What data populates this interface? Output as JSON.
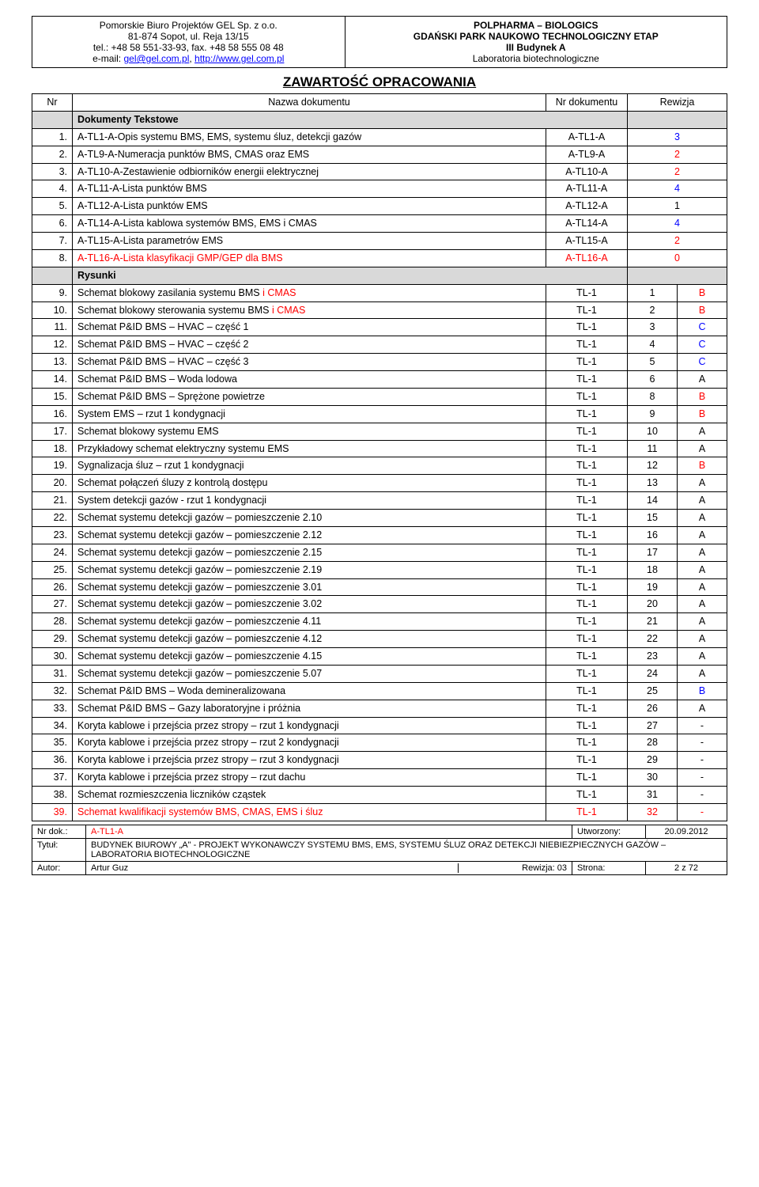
{
  "header": {
    "left": {
      "company": "Pomorskie Biuro Projektów GEL Sp. z o.o.",
      "addr": "81-874 Sopot, ul. Reja 13/15",
      "tel": "tel.: +48 58 551-33-93, fax. +48 58 555 08 48",
      "email_prefix": "e-mail: ",
      "email1": "gel@gel.com.pl",
      "email_sep": ", ",
      "email2": "http://www.gel.com.pl"
    },
    "right": {
      "l1": "POLPHARMA – BIOLOGICS",
      "l2": "GDAŃSKI PARK NAUKOWO TECHNOLOGICZNY ETAP",
      "l3": "III Budynek A",
      "l4": "Laboratoria biotechnologiczne"
    }
  },
  "title": "ZAWARTOŚĆ OPRACOWANIA",
  "columns": {
    "nr": "Nr",
    "name": "Nazwa dokumentu",
    "doc": "Nr dokumentu",
    "rev": "Rewizja"
  },
  "sections": {
    "text": "Dokumenty Tekstowe",
    "draw": "Rysunki"
  },
  "rows_text": [
    {
      "n": "1.",
      "name": "A-TL1-A-Opis systemu BMS, EMS, systemu śluz, detekcji gazów",
      "doc": "A-TL1-A",
      "c1": "3",
      "cls1": "blue"
    },
    {
      "n": "2.",
      "name": "A-TL9-A-Numeracja punktów BMS, CMAS oraz EMS",
      "doc": "A-TL9-A",
      "c1": "2",
      "cls1": "red"
    },
    {
      "n": "3.",
      "name": "A-TL10-A-Zestawienie odbiorników energii elektrycznej",
      "doc": "A-TL10-A",
      "c1": "2",
      "cls1": "red"
    },
    {
      "n": "4.",
      "name": "A-TL11-A-Lista punktów BMS",
      "doc": "A-TL11-A",
      "c1": "4",
      "cls1": "blue"
    },
    {
      "n": "5.",
      "name": "A-TL12-A-Lista punktów EMS",
      "doc": "A-TL12-A",
      "c1": "1",
      "cls1": ""
    },
    {
      "n": "6.",
      "name": "A-TL14-A-Lista kablowa systemów BMS, EMS i CMAS",
      "doc": "A-TL14-A",
      "c1": "4",
      "cls1": "blue"
    },
    {
      "n": "7.",
      "name": "A-TL15-A-Lista parametrów EMS",
      "doc": "A-TL15-A",
      "c1": "2",
      "cls1": "red"
    },
    {
      "n": "8.",
      "name": "A-TL16-A-Lista klasyfikacji GMP/GEP dla BMS",
      "name_cls": "red",
      "doc": "A-TL16-A",
      "doc_cls": "red",
      "c1": "0",
      "cls1": "red"
    }
  ],
  "rows_draw": [
    {
      "n": "9.",
      "name": "Schemat blokowy zasilania systemu BMS i CMAS",
      "name_html": "Schemat blokowy zasilania systemu BMS <span class='red'>i CMAS</span>",
      "doc": "TL-1",
      "c1": "1",
      "c2": "B",
      "cls2": "red"
    },
    {
      "n": "10.",
      "name": "Schemat blokowy sterowania systemu BMS i CMAS",
      "name_html": "Schemat blokowy sterowania systemu BMS <span class='red'>i CMAS</span>",
      "doc": "TL-1",
      "c1": "2",
      "c2": "B",
      "cls2": "red"
    },
    {
      "n": "11.",
      "name": "Schemat P&ID BMS – HVAC – część 1",
      "doc": "TL-1",
      "c1": "3",
      "c2": "C",
      "cls2": "blue"
    },
    {
      "n": "12.",
      "name": "Schemat P&ID BMS – HVAC – część 2",
      "doc": "TL-1",
      "c1": "4",
      "c2": "C",
      "cls2": "blue"
    },
    {
      "n": "13.",
      "name": "Schemat P&ID BMS – HVAC – część 3",
      "doc": "TL-1",
      "c1": "5",
      "c2": "C",
      "cls2": "blue"
    },
    {
      "n": "14.",
      "name": "Schemat P&ID BMS – Woda lodowa",
      "doc": "TL-1",
      "c1": "6",
      "c2": "A",
      "cls2": ""
    },
    {
      "n": "15.",
      "name": "Schemat P&ID BMS – Sprężone powietrze",
      "doc": "TL-1",
      "c1": "8",
      "c2": "B",
      "cls2": "red"
    },
    {
      "n": "16.",
      "name": "System EMS – rzut 1 kondygnacji",
      "doc": "TL-1",
      "c1": "9",
      "c2": "B",
      "cls2": "red"
    },
    {
      "n": "17.",
      "name": "Schemat blokowy systemu EMS",
      "doc": "TL-1",
      "c1": "10",
      "c2": "A",
      "cls2": ""
    },
    {
      "n": "18.",
      "name": "Przykładowy schemat elektryczny systemu EMS",
      "doc": "TL-1",
      "c1": "11",
      "c2": "A",
      "cls2": ""
    },
    {
      "n": "19.",
      "name": "Sygnalizacja śluz – rzut 1 kondygnacji",
      "doc": "TL-1",
      "c1": "12",
      "c2": "B",
      "cls2": "red"
    },
    {
      "n": "20.",
      "name": "Schemat połączeń śluzy z kontrolą dostępu",
      "doc": "TL-1",
      "c1": "13",
      "c2": "A",
      "cls2": ""
    },
    {
      "n": "21.",
      "name": "System detekcji gazów - rzut 1 kondygnacji",
      "doc": "TL-1",
      "c1": "14",
      "c2": "A",
      "cls2": ""
    },
    {
      "n": "22.",
      "name": "Schemat systemu detekcji gazów – pomieszczenie 2.10",
      "doc": "TL-1",
      "c1": "15",
      "c2": "A",
      "cls2": ""
    },
    {
      "n": "23.",
      "name": "Schemat systemu detekcji gazów – pomieszczenie 2.12",
      "doc": "TL-1",
      "c1": "16",
      "c2": "A",
      "cls2": ""
    },
    {
      "n": "24.",
      "name": "Schemat systemu detekcji gazów – pomieszczenie 2.15",
      "doc": "TL-1",
      "c1": "17",
      "c2": "A",
      "cls2": ""
    },
    {
      "n": "25.",
      "name": "Schemat systemu detekcji gazów – pomieszczenie 2.19",
      "doc": "TL-1",
      "c1": "18",
      "c2": "A",
      "cls2": ""
    },
    {
      "n": "26.",
      "name": "Schemat systemu detekcji gazów – pomieszczenie 3.01",
      "doc": "TL-1",
      "c1": "19",
      "c2": "A",
      "cls2": ""
    },
    {
      "n": "27.",
      "name": "Schemat systemu detekcji gazów – pomieszczenie 3.02",
      "doc": "TL-1",
      "c1": "20",
      "c2": "A",
      "cls2": ""
    },
    {
      "n": "28.",
      "name": "Schemat systemu detekcji gazów – pomieszczenie 4.11",
      "doc": "TL-1",
      "c1": "21",
      "c2": "A",
      "cls2": ""
    },
    {
      "n": "29.",
      "name": "Schemat systemu detekcji gazów – pomieszczenie 4.12",
      "doc": "TL-1",
      "c1": "22",
      "c2": "A",
      "cls2": ""
    },
    {
      "n": "30.",
      "name": "Schemat systemu detekcji gazów – pomieszczenie 4.15",
      "doc": "TL-1",
      "c1": "23",
      "c2": "A",
      "cls2": ""
    },
    {
      "n": "31.",
      "name": "Schemat systemu detekcji gazów – pomieszczenie 5.07",
      "doc": "TL-1",
      "c1": "24",
      "c2": "A",
      "cls2": ""
    },
    {
      "n": "32.",
      "name": "Schemat P&ID BMS – Woda demineralizowana",
      "doc": "TL-1",
      "c1": "25",
      "c2": "B",
      "cls2": "blue"
    },
    {
      "n": "33.",
      "name": "Schemat P&ID BMS – Gazy laboratoryjne i próżnia",
      "doc": "TL-1",
      "c1": "26",
      "c2": "A",
      "cls2": ""
    },
    {
      "n": "34.",
      "name": "Koryta kablowe i przejścia przez stropy – rzut 1 kondygnacji",
      "doc": "TL-1",
      "c1": "27",
      "c2": "-",
      "cls2": ""
    },
    {
      "n": "35.",
      "name": "Koryta kablowe i przejścia przez stropy – rzut 2 kondygnacji",
      "doc": "TL-1",
      "c1": "28",
      "c2": "-",
      "cls2": ""
    },
    {
      "n": "36.",
      "name": "Koryta kablowe i przejścia przez stropy – rzut 3 kondygnacji",
      "doc": "TL-1",
      "c1": "29",
      "c2": "-",
      "cls2": ""
    },
    {
      "n": "37.",
      "name": "Koryta kablowe i przejścia przez stropy – rzut dachu",
      "doc": "TL-1",
      "c1": "30",
      "c2": "-",
      "cls2": ""
    },
    {
      "n": "38.",
      "name": "Schemat rozmieszczenia liczników cząstek",
      "doc": "TL-1",
      "c1": "31",
      "c2": "-",
      "cls2": ""
    },
    {
      "n": "39.",
      "name": "Schemat kwalifikacji systemów BMS, CMAS, EMS i śluz",
      "name_cls": "red",
      "n_cls": "red",
      "doc": "TL-1",
      "doc_cls": "red",
      "c1": "32",
      "cls1": "red",
      "c2": "-",
      "cls2": "red"
    }
  ],
  "footer": {
    "nrdok_label": "Nr dok.:",
    "nrdok": "A-TL1-A",
    "utw_label": "Utworzony:",
    "utw": "20.09.2012",
    "tytul_label": "Tytuł:",
    "tytul": "BUDYNEK BIUROWY „A\" - PROJEKT WYKONAWCZY SYSTEMU BMS, EMS, SYSTEMU ŚLUZ ORAZ DETEKCJI NIEBIEZPIECZNYCH GAZÓW – LABORATORIA BIOTECHNOLOGICZNE",
    "autor_label": "Autor:",
    "autor": "Artur Guz",
    "rew_label": "Rewizja: 03",
    "strona_label": "Strona:",
    "strona": "2 z 72"
  }
}
